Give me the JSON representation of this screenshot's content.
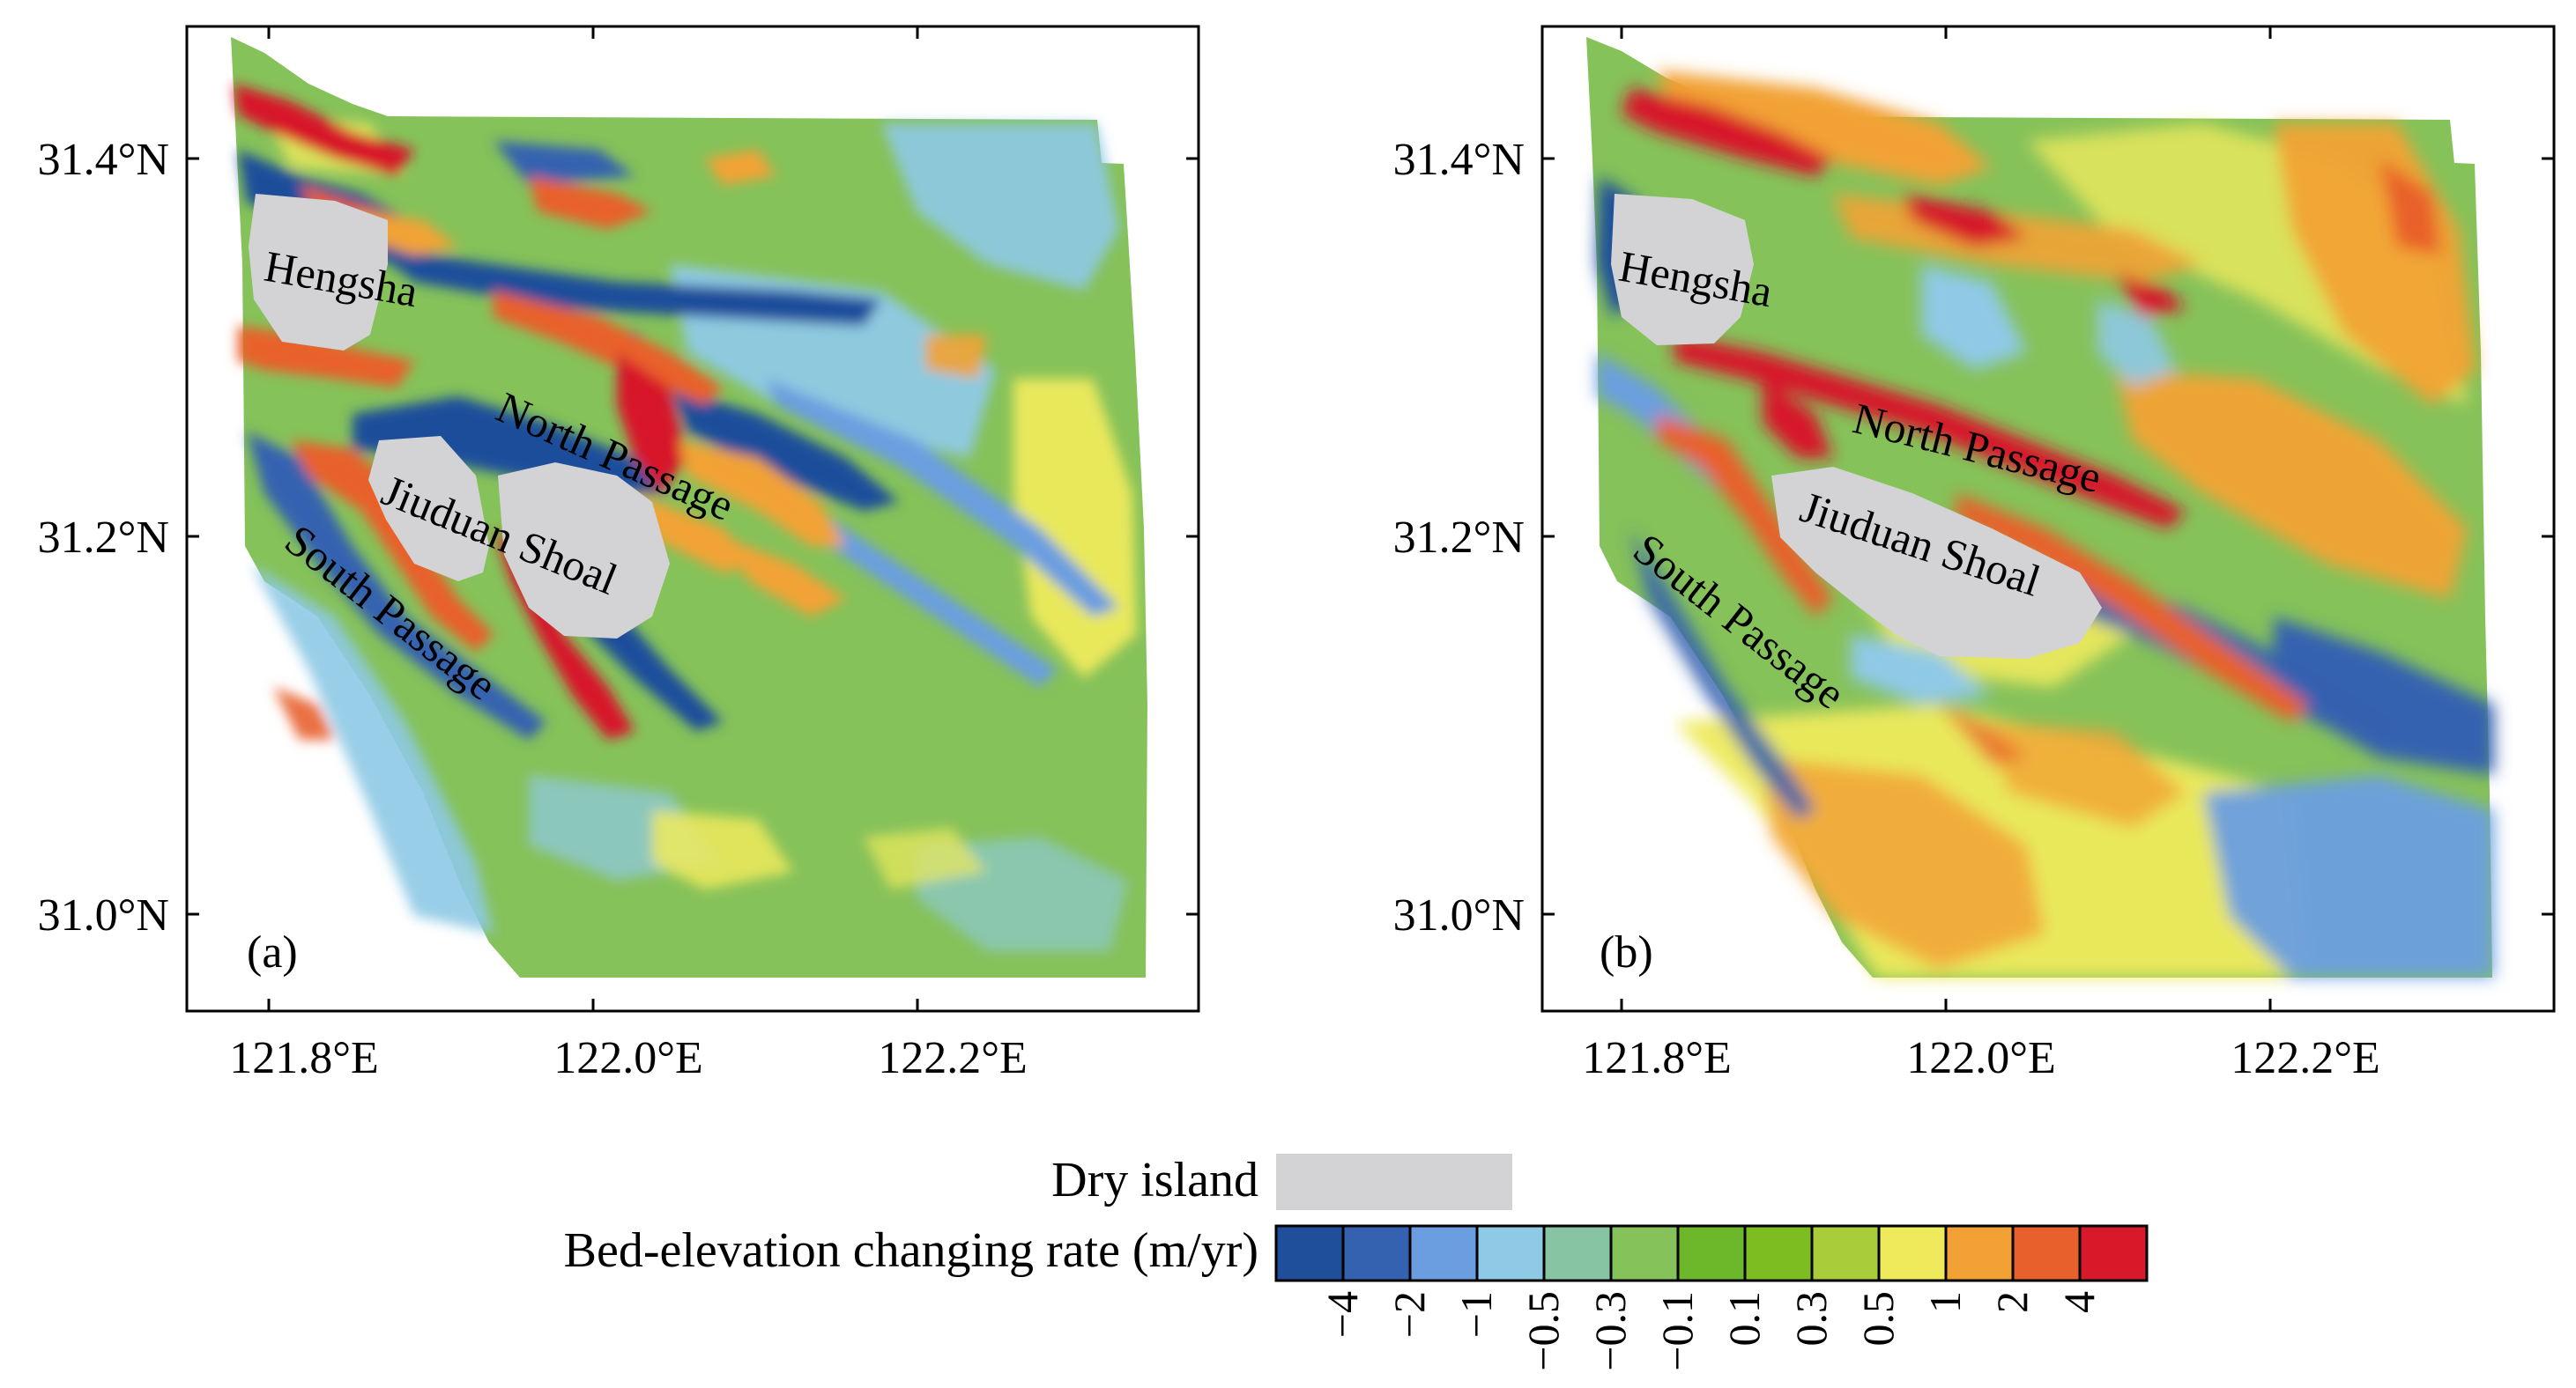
{
  "panels": [
    {
      "label": "(a)",
      "lat_ticks": [
        "31.4°N",
        "31.2°N",
        "31.0°N"
      ],
      "lon_ticks": [
        "121.8°E",
        "122.0°E",
        "122.2°E"
      ],
      "annotations": [
        "Hengsha",
        "North Passage",
        "Jiuduan Shoal",
        "South Passage"
      ]
    },
    {
      "label": "(b)",
      "lat_ticks": [
        "31.4°N",
        "31.2°N",
        "31.0°N"
      ],
      "lon_ticks": [
        "121.8°E",
        "122.0°E",
        "122.2°E"
      ],
      "annotations": [
        "Hengsha",
        "North Passage",
        "Jiuduan Shoal",
        "South Passage"
      ]
    }
  ],
  "legend": {
    "dry_island_label": "Dry island",
    "dry_island_color": "#d3d3d5",
    "colorbar_title": "Bed-elevation changing rate (m/yr)",
    "colorbar_colors": [
      "#1f4e9b",
      "#3462b0",
      "#6a9ee0",
      "#8ec9e6",
      "#86c4a4",
      "#86c25a",
      "#6db82a",
      "#7dbd22",
      "#a9cc3a",
      "#eeea5c",
      "#f2a234",
      "#e8602b",
      "#d7192a"
    ],
    "colorbar_ticks": [
      "−4",
      "−2",
      "−1",
      "−0.5",
      "−0.3",
      "−0.1",
      "0.1",
      "0.3",
      "0.5",
      "1",
      "2",
      "4"
    ]
  },
  "colors": {
    "deep_blue": "#1f4e9b",
    "blue": "#3462b0",
    "light_blue": "#6a9ee0",
    "sky": "#8ec9e6",
    "teal": "#86c4a4",
    "green": "#86c25a",
    "dark_green": "#6db82a",
    "yellow_green": "#a9cc3a",
    "yellow": "#eeea5c",
    "orange": "#f2a234",
    "red_orange": "#e8602b",
    "red": "#d7192a"
  }
}
